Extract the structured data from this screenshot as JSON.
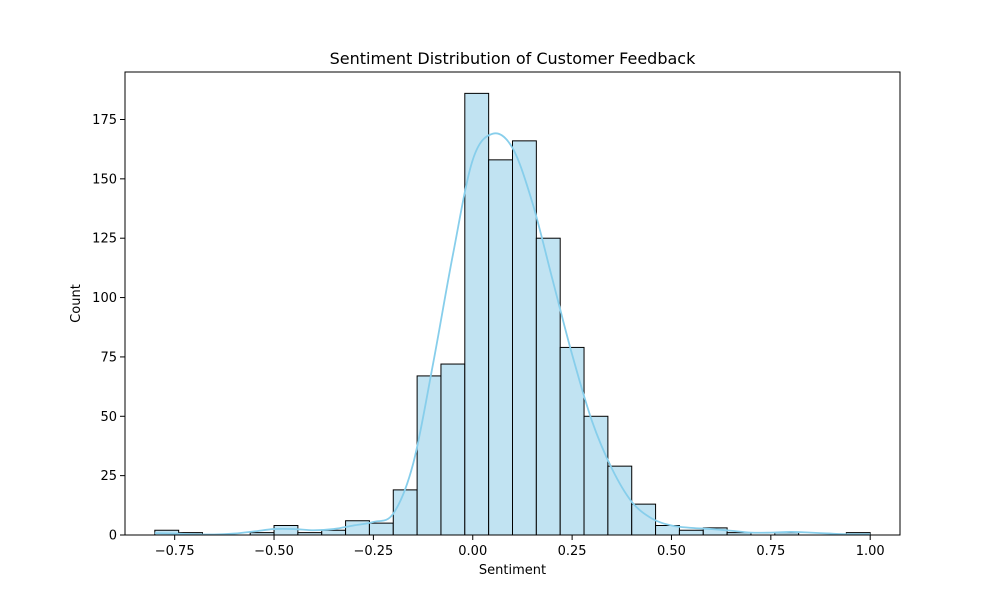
{
  "chart_data": {
    "type": "bar",
    "title": "Sentiment Distribution of Customer Feedback",
    "xlabel": "Sentiment",
    "ylabel": "Count",
    "xlim": [
      -0.875,
      1.075
    ],
    "ylim": [
      0,
      195
    ],
    "grid": false,
    "x_ticks": [
      {
        "value": -0.75,
        "label": "−0.75"
      },
      {
        "value": -0.5,
        "label": "−0.50"
      },
      {
        "value": -0.25,
        "label": "−0.25"
      },
      {
        "value": 0.0,
        "label": "0.00"
      },
      {
        "value": 0.25,
        "label": "0.25"
      },
      {
        "value": 0.5,
        "label": "0.50"
      },
      {
        "value": 0.75,
        "label": "0.75"
      },
      {
        "value": 1.0,
        "label": "1.00"
      }
    ],
    "y_ticks": [
      {
        "value": 0,
        "label": "0"
      },
      {
        "value": 25,
        "label": "25"
      },
      {
        "value": 50,
        "label": "50"
      },
      {
        "value": 75,
        "label": "75"
      },
      {
        "value": 100,
        "label": "100"
      },
      {
        "value": 125,
        "label": "125"
      },
      {
        "value": 150,
        "label": "150"
      },
      {
        "value": 175,
        "label": "175"
      }
    ],
    "bin_edges": [
      -0.8,
      -0.74,
      -0.68,
      -0.62,
      -0.56,
      -0.5,
      -0.44,
      -0.38,
      -0.32,
      -0.26,
      -0.2,
      -0.14,
      -0.08,
      -0.02,
      0.04,
      0.1,
      0.16,
      0.22,
      0.28,
      0.34,
      0.4,
      0.46,
      0.52,
      0.58,
      0.64,
      0.7,
      0.76,
      0.82,
      0.88,
      0.94,
      1.0
    ],
    "values": [
      2,
      1,
      0,
      0,
      1,
      4,
      1,
      2,
      6,
      5,
      19,
      67,
      72,
      186,
      158,
      166,
      125,
      79,
      50,
      29,
      13,
      4,
      2,
      3,
      1,
      0,
      1,
      0,
      0,
      1
    ],
    "kde": {
      "x": [
        -0.8,
        -0.75,
        -0.7,
        -0.65,
        -0.6,
        -0.55,
        -0.5,
        -0.45,
        -0.4,
        -0.35,
        -0.3,
        -0.25,
        -0.2,
        -0.15,
        -0.1,
        -0.05,
        0.0,
        0.05,
        0.1,
        0.15,
        0.2,
        0.25,
        0.3,
        0.35,
        0.4,
        0.45,
        0.5,
        0.55,
        0.6,
        0.65,
        0.7,
        0.75,
        0.8,
        0.85,
        0.9,
        0.95,
        1.0
      ],
      "y": [
        0.8,
        0.6,
        0.3,
        0.2,
        0.6,
        1.5,
        2.5,
        2.5,
        2.0,
        2.5,
        4.0,
        5.5,
        9,
        30,
        72,
        118,
        158,
        169,
        163,
        140,
        108,
        76,
        48,
        28,
        14,
        7,
        4,
        3,
        2.5,
        1.8,
        1.0,
        1.0,
        1.3,
        1.0,
        0.6,
        0.3,
        0.3
      ]
    },
    "colors": {
      "bar_fill": "#c1e3f2",
      "bar_edge": "#000000",
      "kde_line": "#87ceeb"
    }
  }
}
